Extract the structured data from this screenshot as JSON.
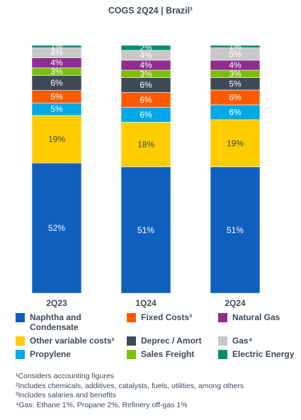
{
  "title": "COGS 2Q24 | Brazil¹",
  "chart_data": {
    "type": "bar",
    "stacked": true,
    "categories": [
      "2Q23",
      "1Q24",
      "2Q24"
    ],
    "ylim": [
      0,
      100
    ],
    "series": [
      {
        "name": "Naphtha and Condensate",
        "color": "#0f5fbf",
        "label_color": "#ffffff",
        "values": [
          52,
          51,
          51
        ]
      },
      {
        "name": "Other variable costs²",
        "color": "#ffcc00",
        "label_color": "#3f4a57",
        "values": [
          19,
          18,
          19
        ]
      },
      {
        "name": "Propylene",
        "color": "#00a9e6",
        "label_color": "#ffffff",
        "values": [
          5,
          6,
          6
        ]
      },
      {
        "name": "Fixed Costs³",
        "color": "#ff5a00",
        "label_color": "#ffffff",
        "values": [
          5,
          6,
          6
        ]
      },
      {
        "name": "Deprec / Amort",
        "color": "#3d4a55",
        "label_color": "#ffffff",
        "values": [
          6,
          6,
          5
        ]
      },
      {
        "name": "Sales Freight",
        "color": "#7ac000",
        "label_color": "#ffffff",
        "values": [
          3,
          3,
          3
        ]
      },
      {
        "name": "Natural Gas",
        "color": "#8e2e8e",
        "label_color": "#ffffff",
        "values": [
          4,
          4,
          4
        ]
      },
      {
        "name": "Gas⁴",
        "color": "#c8c8c8",
        "label_color": "#ffffff",
        "values": [
          4,
          4,
          5
        ]
      },
      {
        "name": "Electric Energy",
        "color": "#008f6b",
        "label_color": "#ffffff",
        "values": [
          1,
          2,
          1
        ]
      }
    ],
    "data_labels": [
      [
        "52%",
        "19%",
        "5%",
        "5%",
        "6%",
        "3%",
        "4%",
        "4%",
        "1%"
      ],
      [
        "51%",
        "18%",
        "6%",
        "6%",
        "6%",
        "3%",
        "4%",
        "4%",
        "2%"
      ],
      [
        "51%",
        "19%",
        "6%",
        "6%",
        "5%",
        "3%",
        "4%",
        "5%",
        "1%"
      ]
    ]
  },
  "legend": {
    "items": [
      {
        "label": "Naphtha and Condensate",
        "color": "#0f5fbf"
      },
      {
        "label": "Fixed Costs³",
        "color": "#ff5a00"
      },
      {
        "label": "Natural Gas",
        "color": "#8e2e8e"
      },
      {
        "label": "Other variable costs²",
        "color": "#ffcc00"
      },
      {
        "label": "Deprec / Amort",
        "color": "#3d4a55"
      },
      {
        "label": "Gas⁴",
        "color": "#c8c8c8"
      },
      {
        "label": "Propylene",
        "color": "#00a9e6"
      },
      {
        "label": "Sales Freight",
        "color": "#7ac000"
      },
      {
        "label": "Electric Energy",
        "color": "#008f6b"
      }
    ]
  },
  "notes": [
    "¹Considers accounting figures",
    "²Includes chemicals, additives, catalysts, fuels, utilities, among others",
    "³Includes salaries and benefits",
    "⁴Gas: Ethane 1%, Propane 2%, Refinery off-gas 1%"
  ]
}
